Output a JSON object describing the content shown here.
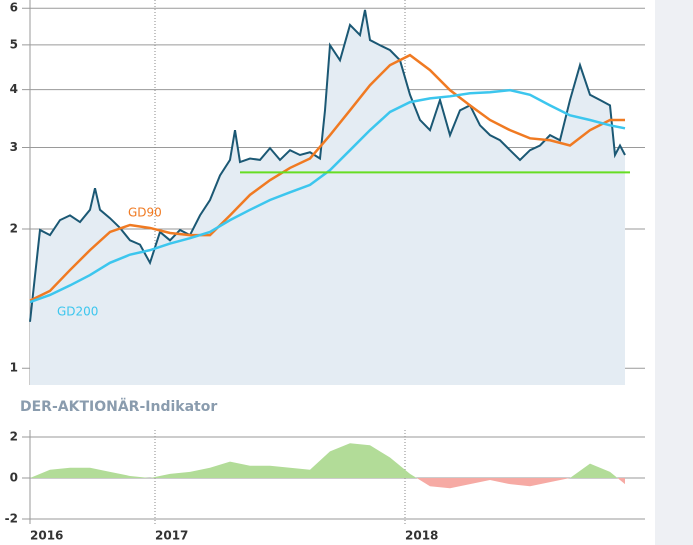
{
  "chart_data": [
    {
      "type": "line",
      "log_scale": true,
      "ylim": [
        0.92,
        6.25
      ],
      "yticks": [
        1,
        2,
        3,
        4,
        5,
        6
      ],
      "grid": true,
      "series": [
        {
          "color": "#1b5874",
          "fill": "#e4ecf3",
          "x": [
            2016.5,
            2016.54,
            2016.58,
            2016.62,
            2016.66,
            2016.7,
            2016.74,
            2016.76,
            2016.78,
            2016.82,
            2016.86,
            2016.9,
            2016.94,
            2016.98,
            2017.02,
            2017.06,
            2017.1,
            2017.14,
            2017.18,
            2017.22,
            2017.26,
            2017.3,
            2017.32,
            2017.34,
            2017.38,
            2017.42,
            2017.46,
            2017.5,
            2017.54,
            2017.58,
            2017.62,
            2017.66,
            2017.68,
            2017.7,
            2017.74,
            2017.78,
            2017.82,
            2017.84,
            2017.86,
            2017.9,
            2017.94,
            2017.98,
            2018.02,
            2018.06,
            2018.1,
            2018.14,
            2018.18,
            2018.22,
            2018.26,
            2018.3,
            2018.34,
            2018.38,
            2018.42,
            2018.46,
            2018.5,
            2018.54,
            2018.58,
            2018.62,
            2018.66,
            2018.7,
            2018.74,
            2018.78,
            2018.82,
            2018.84,
            2018.86,
            2018.88
          ],
          "values": [
            1.26,
            1.99,
            1.94,
            2.09,
            2.14,
            2.07,
            2.2,
            2.45,
            2.2,
            2.11,
            2.01,
            1.89,
            1.85,
            1.69,
            1.97,
            1.89,
            1.99,
            1.94,
            2.14,
            2.31,
            2.61,
            2.82,
            3.27,
            2.79,
            2.84,
            2.82,
            2.99,
            2.82,
            2.96,
            2.89,
            2.93,
            2.84,
            3.61,
            4.99,
            4.63,
            5.52,
            5.25,
            5.95,
            5.12,
            4.99,
            4.87,
            4.63,
            3.9,
            3.44,
            3.27,
            3.8,
            3.19,
            3.61,
            3.7,
            3.35,
            3.19,
            3.11,
            2.96,
            2.82,
            2.96,
            3.03,
            3.19,
            3.11,
            3.8,
            4.52,
            3.9,
            3.8,
            3.7,
            2.89,
            3.03,
            2.89
          ]
        },
        {
          "name": "GD90",
          "color": "#f07a22",
          "x": [
            2016.5,
            2016.58,
            2016.66,
            2016.74,
            2016.82,
            2016.9,
            2016.98,
            2017.06,
            2017.14,
            2017.22,
            2017.3,
            2017.38,
            2017.46,
            2017.54,
            2017.62,
            2017.7,
            2017.78,
            2017.86,
            2017.94,
            2018.02,
            2018.1,
            2018.18,
            2018.26,
            2018.34,
            2018.42,
            2018.5,
            2018.58,
            2018.66,
            2018.74,
            2018.82,
            2018.88
          ],
          "values": [
            1.4,
            1.47,
            1.63,
            1.8,
            1.97,
            2.04,
            2.01,
            1.96,
            1.94,
            1.94,
            2.14,
            2.37,
            2.55,
            2.71,
            2.84,
            3.19,
            3.61,
            4.09,
            4.52,
            4.75,
            4.41,
            3.99,
            3.7,
            3.44,
            3.27,
            3.14,
            3.11,
            3.03,
            3.27,
            3.44,
            3.44
          ]
        },
        {
          "name": "GD200",
          "color": "#3cc6ee",
          "x": [
            2016.5,
            2016.58,
            2016.66,
            2016.74,
            2016.82,
            2016.9,
            2016.98,
            2017.06,
            2017.14,
            2017.22,
            2017.3,
            2017.38,
            2017.46,
            2017.54,
            2017.62,
            2017.7,
            2017.78,
            2017.86,
            2017.94,
            2018.02,
            2018.1,
            2018.18,
            2018.26,
            2018.34,
            2018.42,
            2018.5,
            2018.58,
            2018.66,
            2018.74,
            2018.82,
            2018.88
          ],
          "values": [
            1.39,
            1.44,
            1.51,
            1.59,
            1.69,
            1.76,
            1.8,
            1.86,
            1.91,
            1.97,
            2.09,
            2.2,
            2.31,
            2.4,
            2.49,
            2.68,
            2.96,
            3.27,
            3.58,
            3.76,
            3.83,
            3.87,
            3.93,
            3.95,
            3.99,
            3.9,
            3.7,
            3.52,
            3.44,
            3.35,
            3.3
          ]
        }
      ],
      "reference_lines": [
        {
          "value": 2.65,
          "x": [
            2017.34,
            2018.9
          ],
          "color": "#66dd22"
        }
      ]
    },
    {
      "type": "area",
      "title": "DER-AKTIONÄR-Indikator",
      "xlim": [
        2016.5,
        2018.96
      ],
      "xticks": [
        {
          "value": 2016.5,
          "label": "2016"
        },
        2017,
        2018
      ],
      "ylim": [
        -2.1,
        2.1
      ],
      "yticks": [
        2,
        0,
        -2
      ],
      "grid": true,
      "positive_color": "#b2dc98",
      "negative_color": "#f6aaa4",
      "x": [
        2016.5,
        2016.58,
        2016.66,
        2016.74,
        2016.82,
        2016.9,
        2016.98,
        2017.06,
        2017.14,
        2017.22,
        2017.3,
        2017.38,
        2017.46,
        2017.54,
        2017.62,
        2017.7,
        2017.78,
        2017.86,
        2017.94,
        2018.02,
        2018.1,
        2018.18,
        2018.26,
        2018.34,
        2018.42,
        2018.5,
        2018.58,
        2018.66,
        2018.74,
        2018.82,
        2018.88
      ],
      "values": [
        0,
        0.4,
        0.5,
        0.5,
        0.3,
        0.1,
        0,
        0.2,
        0.3,
        0.5,
        0.8,
        0.6,
        0.6,
        0.5,
        0.4,
        1.3,
        1.7,
        1.6,
        1.0,
        0.2,
        -0.4,
        -0.5,
        -0.3,
        -0.1,
        -0.3,
        -0.4,
        -0.2,
        0,
        0.7,
        0.3,
        -0.3
      ]
    }
  ]
}
